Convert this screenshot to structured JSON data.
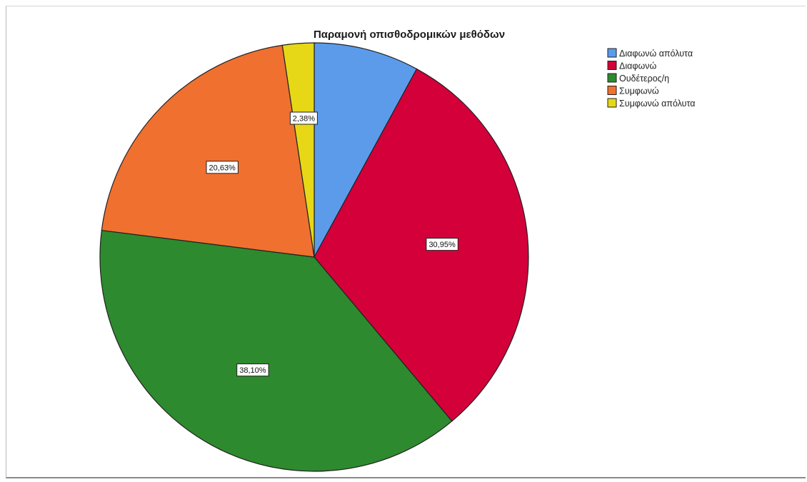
{
  "chart_data": {
    "type": "pie",
    "title": "Παραμονή οπισθοδρομικών μεθόδων",
    "categories": [
      "Διαφωνώ απόλυτα",
      "Διαφωνώ",
      "Ουδέτερος/η",
      "Συμφωνώ",
      "Συμφωνώ απόλυτα"
    ],
    "values": [
      7.94,
      30.95,
      38.1,
      20.63,
      2.38
    ],
    "data_labels": [
      "",
      "30,95%",
      "38,10%",
      "20,63%",
      "2,38%"
    ],
    "colors": [
      "#5b9bea",
      "#d4003a",
      "#2e8a2e",
      "#f07030",
      "#e6d816"
    ],
    "legend_position": "top-right"
  }
}
